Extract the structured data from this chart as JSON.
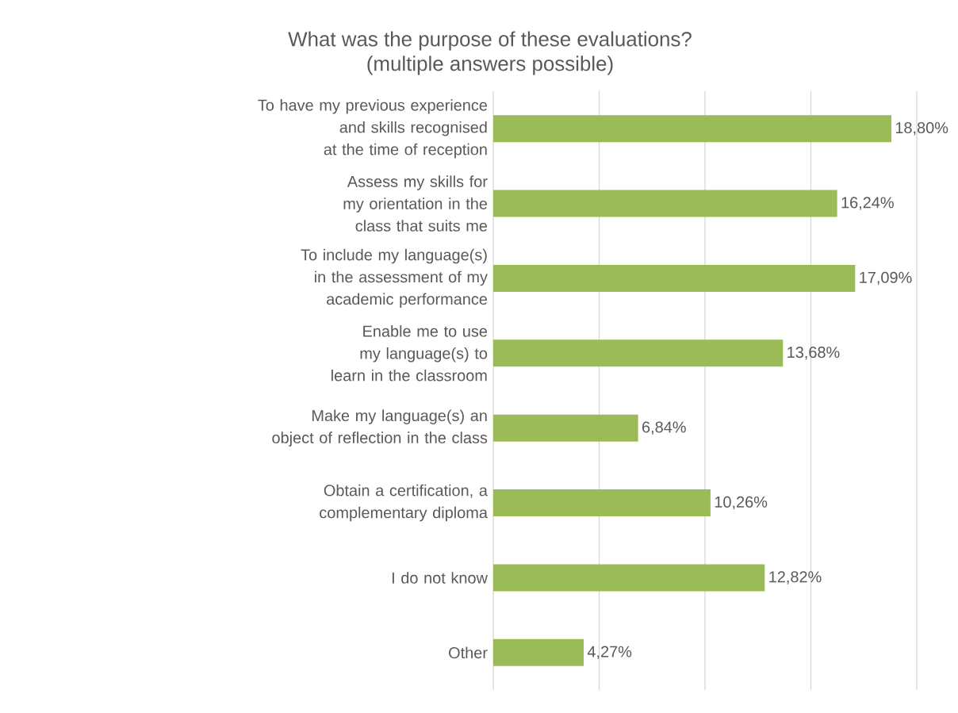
{
  "chart_data": {
    "type": "bar",
    "orientation": "horizontal",
    "title": "What was the purpose of these evaluations?\n(multiple answers possible)",
    "categories": [
      "To have my previous experience and skills recognised at the time of reception",
      "Assess my skills for my orientation in the class that suits me",
      "To include my language(s) in the assessment of my academic performance",
      "Enable me to use my language(s) to learn in the classroom",
      "Make my language(s) an object of reflection in the class",
      "Obtain a certification, a complementary diploma",
      "I do not know",
      "Other"
    ],
    "values": [
      18.8,
      16.24,
      17.09,
      13.68,
      6.84,
      10.26,
      12.82,
      4.27
    ],
    "value_labels": [
      "18,80%",
      "16,24%",
      "17,09%",
      "13,68%",
      "6,84%",
      "10,26%",
      "12,82%",
      "4,27%"
    ],
    "color": "#9bbb59",
    "xlim": [
      0,
      20
    ],
    "xticks": [
      {
        "value": 0,
        "label": null
      },
      {
        "value": 5,
        "label": null
      },
      {
        "value": 10,
        "label": null
      },
      {
        "value": 15,
        "label": null
      },
      {
        "value": 20,
        "label": null
      }
    ],
    "grid": "x",
    "tick_labels": "y"
  }
}
